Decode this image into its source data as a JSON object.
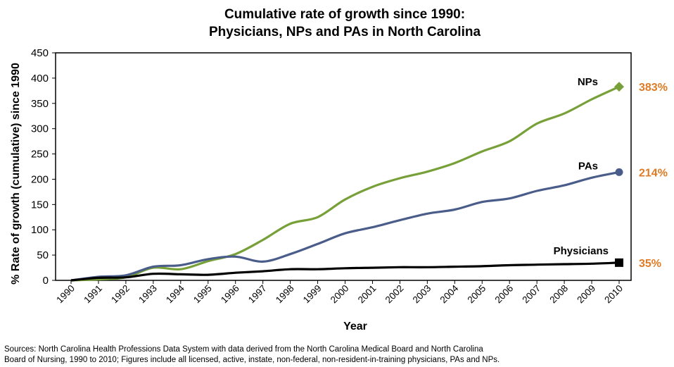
{
  "chart_data": {
    "type": "line",
    "title_line1": "Cumulative rate of growth since 1990:",
    "title_line2": "Physicians, NPs and PAs in North Carolina",
    "xlabel": "Year",
    "ylabel": "% Rate of growth (cumulative) since 1990",
    "ylim": [
      0,
      450
    ],
    "yticks": [
      0,
      50,
      100,
      150,
      200,
      250,
      300,
      350,
      400,
      450
    ],
    "x": [
      "1990",
      "1991",
      "1992",
      "1993",
      "1994",
      "1995",
      "1996",
      "1997",
      "1998",
      "1999",
      "2000",
      "2001",
      "2002",
      "2003",
      "2004",
      "2005",
      "2006",
      "2007",
      "2008",
      "2009",
      "2010"
    ],
    "grid": false,
    "series": [
      {
        "name": "NPs",
        "color": "#77a038",
        "marker": "diamond",
        "end_label": "383%",
        "values": [
          0,
          2,
          6,
          25,
          22,
          38,
          52,
          80,
          112,
          125,
          160,
          185,
          202,
          215,
          232,
          255,
          275,
          310,
          330,
          358,
          383
        ]
      },
      {
        "name": "PAs",
        "color": "#4a5d8a",
        "marker": "circle",
        "end_label": "214%",
        "values": [
          0,
          7,
          10,
          27,
          30,
          42,
          47,
          37,
          52,
          72,
          93,
          105,
          119,
          132,
          140,
          155,
          162,
          177,
          188,
          203,
          214
        ]
      },
      {
        "name": "Physicians",
        "color": "#000000",
        "marker": "square",
        "end_label": "35%",
        "values": [
          0,
          5,
          6,
          13,
          12,
          11,
          15,
          18,
          22,
          22,
          24,
          25,
          26,
          26,
          27,
          28,
          30,
          31,
          32,
          33,
          35
        ]
      }
    ],
    "end_label_color": "#e07b24"
  },
  "sources": {
    "line1": "Sources:  North Carolina Health Professions Data System with data derived from the North Carolina Medical Board and North Carolina",
    "line2": "Board of Nursing, 1990 to 2010; Figures include all licensed, active, instate, non-federal, non-resident-in-training physicians, PAs and NPs."
  }
}
